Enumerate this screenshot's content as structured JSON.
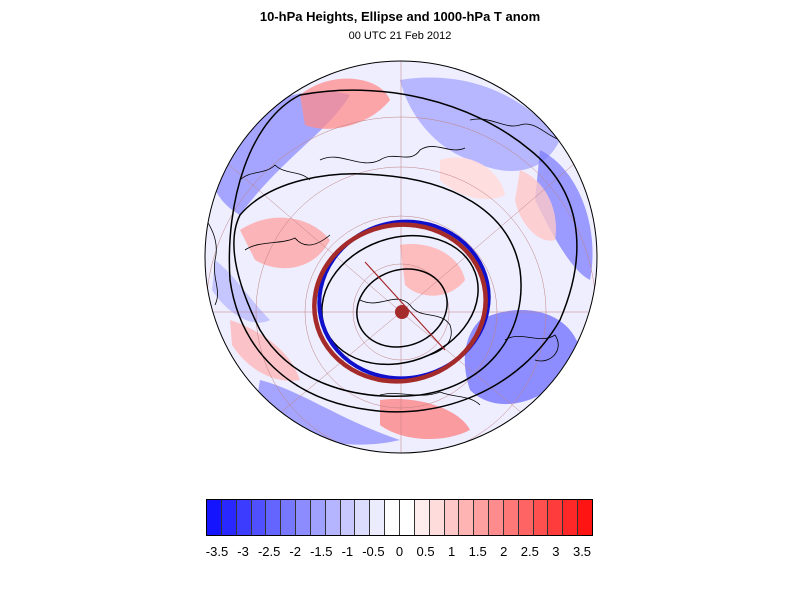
{
  "title": "10-hPa Heights, Ellipse and 1000-hPa T anom",
  "subtitle": "00 UTC 21 Feb 2012",
  "map": {
    "projection": "polar stereographic (Northern Hemisphere)",
    "fill_field": "1000-hPa temperature anomaly",
    "contour_field": "10-hPa geopotential height",
    "ellipse_color": "#a52a2a",
    "height_contour_color": "#000000",
    "ellipse_overlay_color": "#1010cc",
    "graticule_color": "#c08080",
    "coastline_color": "#000000"
  },
  "colorbar": {
    "labels": [
      "-3.5",
      "-3",
      "-2.5",
      "-2",
      "-1.5",
      "-1",
      "-0.5",
      "0",
      "0.5",
      "1",
      "1.5",
      "2",
      "2.5",
      "3",
      "3.5"
    ],
    "colors": [
      "#1414ff",
      "#2828ff",
      "#3c3cff",
      "#5050ff",
      "#6464ff",
      "#7878ff",
      "#8c8cff",
      "#a0a0ff",
      "#b4b4ff",
      "#c8c8ff",
      "#dcdcff",
      "#ececff",
      "#ffffff",
      "#ffffff",
      "#ffecec",
      "#ffdcdc",
      "#ffc8c8",
      "#ffb4b4",
      "#ffa0a0",
      "#ff8c8c",
      "#ff7878",
      "#ff6464",
      "#ff5050",
      "#ff3c3c",
      "#ff2828",
      "#ff1414"
    ]
  }
}
